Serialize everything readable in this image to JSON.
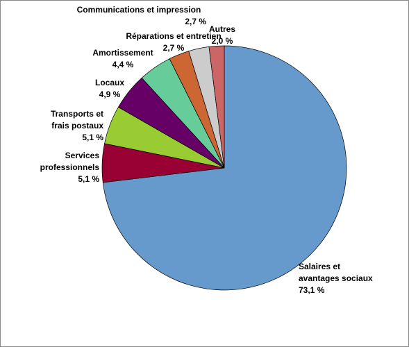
{
  "chart_data": {
    "type": "pie",
    "categories": [
      "Salaires et\navantages sociaux",
      "Services\nprofessionnels",
      "Transports et\nfrais postaux",
      "Locaux",
      "Amortissement",
      "Réparations et entretien",
      "Communications et impression",
      "Autres"
    ],
    "values": [
      73.1,
      5.1,
      5.1,
      4.9,
      4.4,
      2.7,
      2.7,
      2.0
    ],
    "value_labels": [
      "73,1 %",
      "5,1 %",
      "5,1 %",
      "4,9 %",
      "4,4 %",
      "2,7 %",
      "2,7 %",
      "2,0 %"
    ],
    "colors": [
      "#6699cc",
      "#990033",
      "#99cc33",
      "#660066",
      "#66cc99",
      "#cc6633",
      "#cccccc",
      "#cc6666"
    ]
  }
}
